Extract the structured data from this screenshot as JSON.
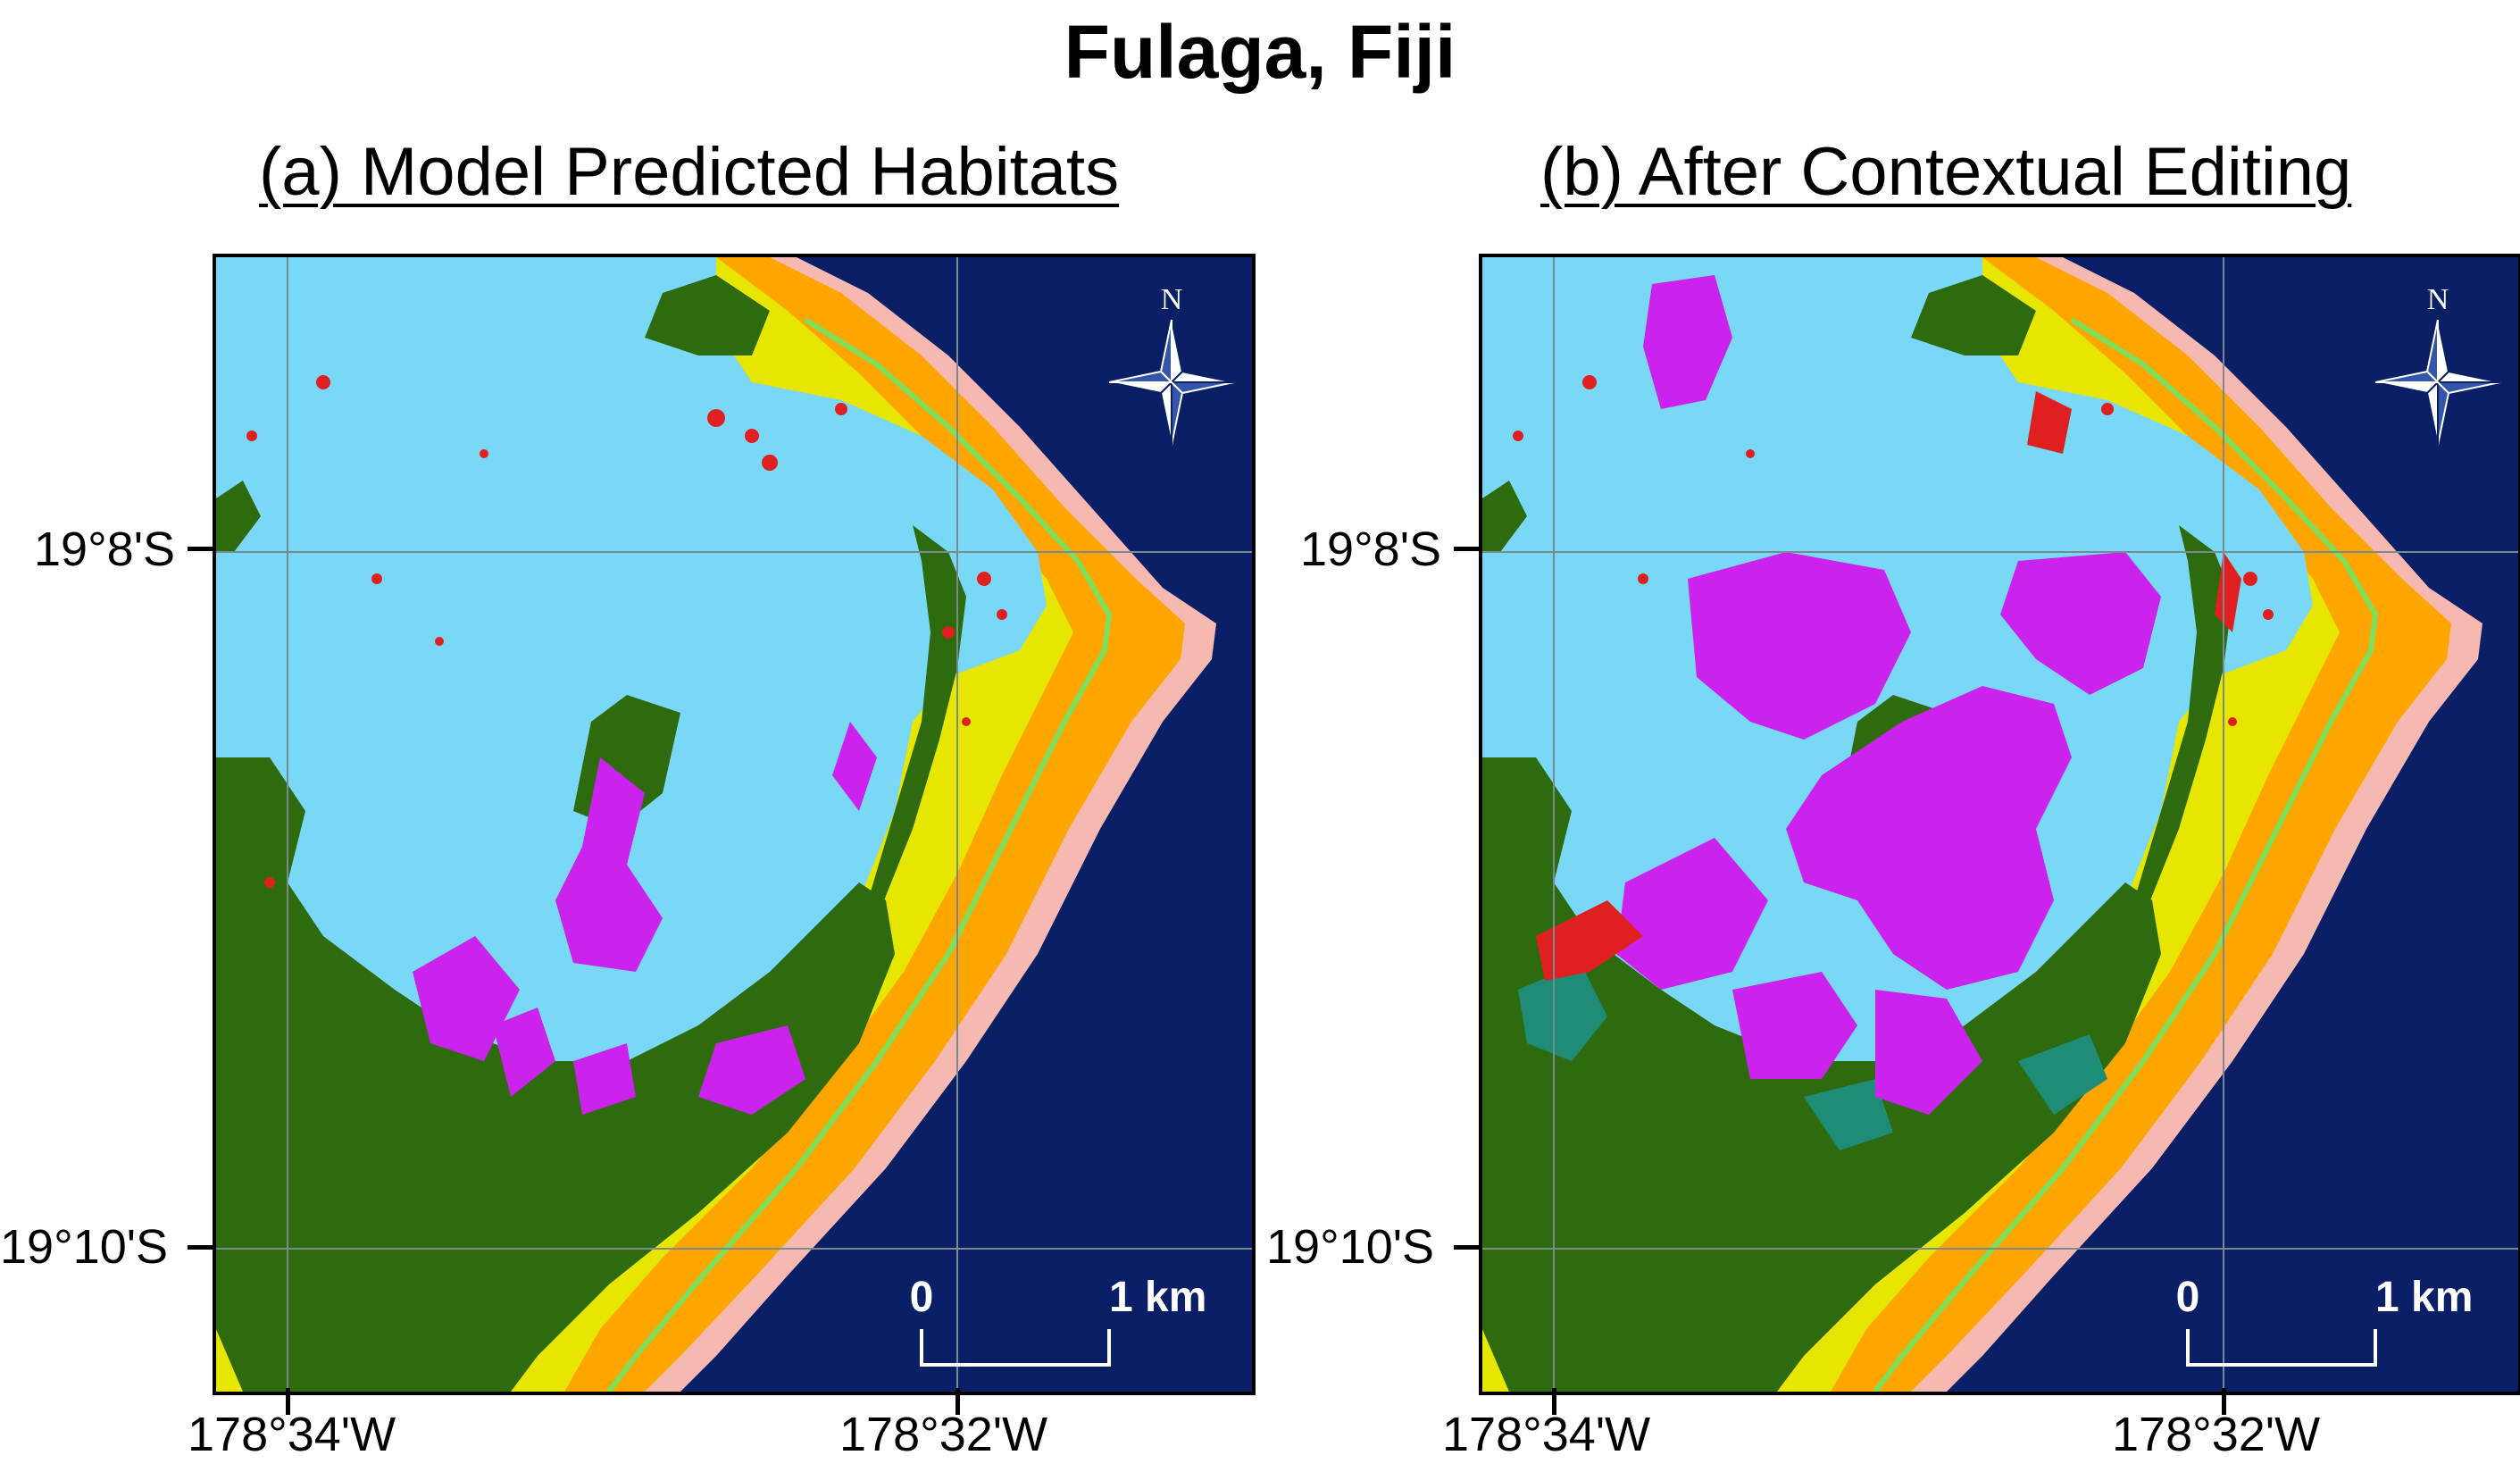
{
  "title": "Fulaga, Fiji",
  "panels": [
    {
      "subtitle": "(a) Model Predicted Habitats",
      "lat_labels": [
        "19°8'S",
        "19°10'S"
      ],
      "lon_labels": [
        "178°34'W",
        "178°32'W"
      ],
      "north_label": "N",
      "scale_bar": {
        "start": "0",
        "end": "1 km"
      }
    },
    {
      "subtitle": "(b) After Contextual Editing",
      "lat_labels": [
        "19°8'S",
        "19°10'S"
      ],
      "lon_labels": [
        "178°34'W",
        "178°32'W"
      ],
      "north_label": "N",
      "scale_bar": {
        "start": "0",
        "end": "1 km"
      }
    }
  ],
  "colors": {
    "ocean": "#0a1f66",
    "lagoon": "#78d8f5",
    "land": "#2e6b0e",
    "reef_crest": "#f5b9b2",
    "fore_reef": "#ffa500",
    "reef_flat": "#e6e600",
    "reef_edge": "#7ee05a",
    "coral": "#e02020",
    "seagrass": "#cc22ee",
    "mangrove": "#1f8c78"
  }
}
